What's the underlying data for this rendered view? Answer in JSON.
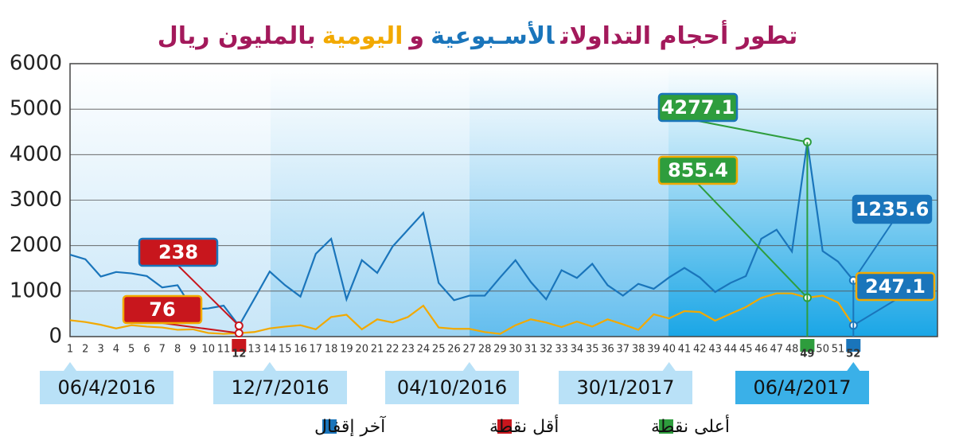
{
  "chart_data": {
    "type": "line",
    "title": [
      {
        "text": "تطور أحجام التداولات",
        "color": "#a3195b"
      },
      {
        "text": "الأسـبوعية",
        "color": "#1a75bb"
      },
      {
        "text": "و",
        "color": "#a3195b"
      },
      {
        "text": "اليومية",
        "color": "#f2a900"
      },
      {
        "text": "بالمليون ريال",
        "color": "#a3195b"
      }
    ],
    "categories": [
      1,
      2,
      3,
      4,
      5,
      6,
      7,
      8,
      9,
      10,
      11,
      12,
      13,
      14,
      15,
      16,
      17,
      18,
      19,
      20,
      21,
      22,
      23,
      24,
      25,
      26,
      27,
      28,
      29,
      30,
      31,
      32,
      33,
      34,
      35,
      36,
      37,
      38,
      39,
      40,
      41,
      42,
      43,
      44,
      45,
      46,
      47,
      48,
      49,
      50,
      51,
      52
    ],
    "series": [
      {
        "color": "#1a75bb",
        "values": [
          1800,
          1700,
          1320,
          1420,
          1390,
          1330,
          1080,
          1130,
          600,
          620,
          680,
          238,
          830,
          1430,
          1130,
          880,
          1820,
          2150,
          820,
          1680,
          1400,
          1980,
          2350,
          2720,
          1180,
          800,
          900,
          900,
          1300,
          1680,
          1200,
          820,
          1460,
          1290,
          1600,
          1130,
          900,
          1160,
          1050,
          1300,
          1510,
          1300,
          980,
          1180,
          1330,
          2150,
          2350,
          1870,
          4277.1,
          1880,
          1650,
          1235.6
        ]
      },
      {
        "color": "#f2a900",
        "values": [
          360,
          320,
          260,
          180,
          250,
          220,
          200,
          150,
          160,
          80,
          60,
          76,
          100,
          180,
          220,
          250,
          160,
          430,
          480,
          160,
          380,
          310,
          430,
          680,
          200,
          170,
          170,
          100,
          60,
          250,
          380,
          310,
          210,
          330,
          220,
          380,
          270,
          150,
          490,
          400,
          560,
          540,
          350,
          500,
          650,
          850,
          950,
          950,
          855.4,
          900,
          750,
          247.1
        ]
      }
    ],
    "ylim": [
      0,
      6000
    ],
    "yticks": [
      0,
      1000,
      2000,
      3000,
      4000,
      5000,
      6000
    ],
    "grid": true,
    "markers": [
      {
        "category": 12,
        "color": "#c8161d"
      },
      {
        "category": 49,
        "color": "#2e9d3d"
      },
      {
        "category": 52,
        "color": "#1a75bb"
      }
    ],
    "date_markers": [
      {
        "label": "06/4/2016",
        "x": 1
      },
      {
        "label": "12/7/2016",
        "x": 14
      },
      {
        "label": "04/10/2016",
        "x": 27
      },
      {
        "label": "30/1/2017",
        "x": 40
      },
      {
        "label": "06/4/2017",
        "x": 52
      }
    ],
    "legend": [
      {
        "name": "آخر إقفال",
        "color": "#1a75bb"
      },
      {
        "name": "أقل نقطة",
        "color": "#c8161d"
      },
      {
        "name": "أعلى نقطة",
        "color": "#2e9d3d"
      }
    ]
  }
}
